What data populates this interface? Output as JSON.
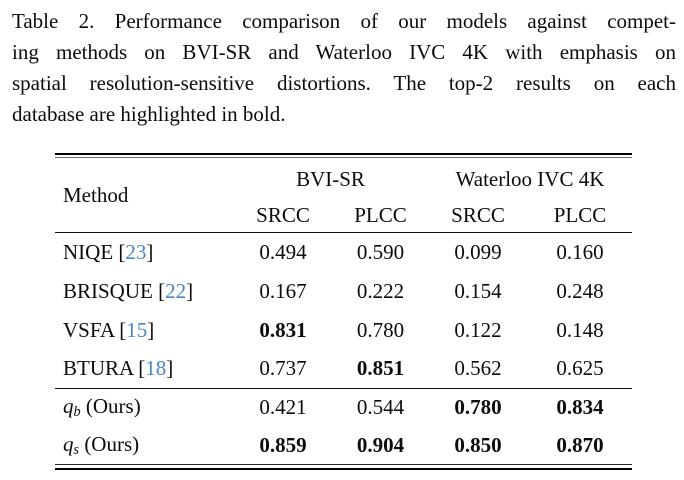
{
  "caption": {
    "lines": [
      "Table 2. Performance comparison of our models against compet-",
      "ing methods on BVI-SR and Waterloo IVC 4K with emphasis on",
      "spatial resolution-sensitive distortions. The top-2 results on each",
      "database are highlighted in bold."
    ]
  },
  "table": {
    "header": {
      "method": "Method",
      "groups": [
        {
          "label": "BVI-SR",
          "cols": [
            "SRCC",
            "PLCC"
          ]
        },
        {
          "label": "Waterloo IVC 4K",
          "cols": [
            "SRCC",
            "PLCC"
          ]
        }
      ]
    },
    "rows": [
      {
        "section": "baseline",
        "method": {
          "pre": "NIQE [",
          "cite": "23",
          "post": "]"
        },
        "values": [
          {
            "v": "0.494",
            "bold": false
          },
          {
            "v": "0.590",
            "bold": false
          },
          {
            "v": "0.099",
            "bold": false
          },
          {
            "v": "0.160",
            "bold": false
          }
        ]
      },
      {
        "section": "baseline",
        "method": {
          "pre": "BRISQUE [",
          "cite": "22",
          "post": "]"
        },
        "values": [
          {
            "v": "0.167",
            "bold": false
          },
          {
            "v": "0.222",
            "bold": false
          },
          {
            "v": "0.154",
            "bold": false
          },
          {
            "v": "0.248",
            "bold": false
          }
        ]
      },
      {
        "section": "baseline",
        "method": {
          "pre": "VSFA [",
          "cite": "15",
          "post": "]"
        },
        "values": [
          {
            "v": "0.831",
            "bold": true
          },
          {
            "v": "0.780",
            "bold": false
          },
          {
            "v": "0.122",
            "bold": false
          },
          {
            "v": "0.148",
            "bold": false
          }
        ]
      },
      {
        "section": "baseline",
        "method": {
          "pre": "BTURA [",
          "cite": "18",
          "post": "]"
        },
        "values": [
          {
            "v": "0.737",
            "bold": false
          },
          {
            "v": "0.851",
            "bold": true
          },
          {
            "v": "0.562",
            "bold": false
          },
          {
            "v": "0.625",
            "bold": false
          }
        ]
      },
      {
        "section": "ours",
        "method": {
          "var": "q",
          "sub": "b",
          "post": " (Ours)"
        },
        "values": [
          {
            "v": "0.421",
            "bold": false
          },
          {
            "v": "0.544",
            "bold": false
          },
          {
            "v": "0.780",
            "bold": true
          },
          {
            "v": "0.834",
            "bold": true
          }
        ]
      },
      {
        "section": "ours",
        "method": {
          "var": "q",
          "sub": "s",
          "post": " (Ours)"
        },
        "values": [
          {
            "v": "0.859",
            "bold": true
          },
          {
            "v": "0.904",
            "bold": true
          },
          {
            "v": "0.850",
            "bold": true
          },
          {
            "v": "0.870",
            "bold": true
          }
        ]
      }
    ],
    "colors": {
      "citation": "#4787C6",
      "text": "#0c0c0c",
      "rule": "#000000"
    }
  }
}
